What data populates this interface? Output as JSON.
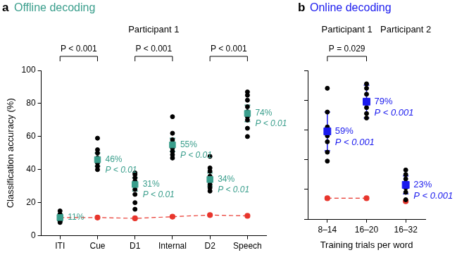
{
  "chart_data": [
    {
      "type": "scatter",
      "panel": "a",
      "title": "Offline decoding",
      "subtitle": "Participant 1",
      "y_label": "Classification accuracy (%)",
      "categories": [
        "ITI",
        "Cue",
        "D1",
        "Internal",
        "D2",
        "Speech"
      ],
      "ylim": [
        0,
        100
      ],
      "yticks": [
        0,
        20,
        40,
        60,
        80,
        100
      ],
      "grid": false,
      "series": [
        {
          "type": "mean",
          "color": "#3a9e8c",
          "marker": "square",
          "values": [
            11,
            46,
            31,
            55,
            34,
            74
          ],
          "error": [
            2,
            4,
            4,
            4,
            4,
            5
          ],
          "data_labels": true,
          "value_labels": [
            "11%",
            "46%",
            "31%",
            "55%",
            "34%",
            "74%"
          ],
          "p_labels": [
            null,
            "P < 0.01",
            "P < 0.01",
            "P < 0.01",
            "P < 0.01",
            "P < 0.01"
          ]
        },
        {
          "type": "points",
          "color": "#000000",
          "marker": "circle",
          "values": [
            [
              8,
              9,
              9,
              10,
              11,
              12,
              13,
              15
            ],
            [
              40,
              42,
              44,
              45,
              47,
              50,
              52,
              59
            ],
            [
              16,
              20,
              25,
              28,
              31,
              33,
              35,
              37,
              38
            ],
            [
              47,
              49,
              51,
              53,
              56,
              58,
              62,
              72
            ],
            [
              27,
              29,
              31,
              33,
              36,
              39,
              41,
              48
            ],
            [
              60,
              65,
              70,
              72,
              75,
              78,
              82,
              85,
              87
            ]
          ]
        },
        {
          "type": "line",
          "color": "#e8352c",
          "marker": "circle",
          "line_style": "dashed",
          "values": [
            11,
            11,
            10.5,
            11.5,
            12.5,
            12
          ]
        }
      ],
      "comparisons": [
        {
          "from": "ITI",
          "to": "Cue",
          "label": "P < 0.001"
        },
        {
          "from": "D1",
          "to": "Internal",
          "label": "P < 0.001"
        },
        {
          "from": "D2",
          "to": "Speech",
          "label": "P < 0.001"
        }
      ]
    },
    {
      "type": "scatter",
      "panel": "b",
      "title": "Online decoding",
      "x_label": "Training trials per word",
      "categories": [
        "8–14",
        "16–20",
        "16–32"
      ],
      "groups": [
        {
          "name": "Participant 1",
          "categories": [
            "8–14",
            "16–20"
          ]
        },
        {
          "name": "Participant 2",
          "categories": [
            "16–32"
          ]
        }
      ],
      "ylim": [
        0,
        100
      ],
      "yticks": [
        0,
        20,
        40,
        60,
        80,
        100
      ],
      "grid": false,
      "tick_labels": "x",
      "series": [
        {
          "type": "mean",
          "color": "#1a1aee",
          "marker": "square",
          "values": [
            59,
            79,
            23
          ],
          "error": [
            13,
            11,
            6
          ],
          "data_labels": true,
          "value_labels": [
            "59%",
            "79%",
            "23%"
          ],
          "p_labels": [
            "P < 0.001",
            "P < 0.001",
            "P < 0.001"
          ]
        },
        {
          "type": "points",
          "color": "#000000",
          "marker": "circle",
          "values": [
            [
              39,
              45,
              52,
              56,
              60,
              62,
              72,
              88
            ],
            [
              68,
              71,
              75,
              80,
              84,
              88,
              91
            ],
            [
              13,
              18,
              21,
              24,
              27,
              30,
              33
            ]
          ]
        },
        {
          "type": "line",
          "color": "#e8352c",
          "marker": "circle",
          "line_style": "dashed",
          "values": [
            14,
            14,
            12
          ]
        }
      ],
      "comparisons": [
        {
          "from": "8–14",
          "to": "16–20",
          "label": "P = 0.029"
        }
      ]
    }
  ]
}
